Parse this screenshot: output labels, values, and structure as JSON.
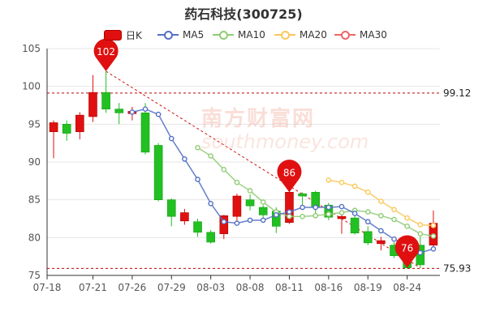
{
  "chart_data": {
    "type": "candlestick",
    "title": "药石科技(300725)",
    "legend": [
      {
        "name": "日K",
        "color": "#e01010",
        "kind": "candle"
      },
      {
        "name": "MA5",
        "color": "#5470c6",
        "kind": "line"
      },
      {
        "name": "MA10",
        "color": "#91cc75",
        "kind": "line"
      },
      {
        "name": "MA20",
        "color": "#fac858",
        "kind": "line"
      },
      {
        "name": "MA30",
        "color": "#ee6666",
        "kind": "line"
      }
    ],
    "legend_position": "top",
    "x_tick_labels": [
      "07-18",
      "07-21",
      "07-26",
      "07-29",
      "08-03",
      "08-08",
      "08-11",
      "08-16",
      "08-19",
      "08-24"
    ],
    "y_ticks": [
      75,
      80,
      85,
      90,
      95,
      100,
      105
    ],
    "ylim": [
      75,
      105
    ],
    "grid": true,
    "up_color": "#e01010",
    "down_color": "#22c022",
    "dates": [
      "07-18",
      "07-19",
      "07-20",
      "07-21",
      "07-22",
      "07-25",
      "07-26",
      "07-27",
      "07-28",
      "07-29",
      "08-01",
      "08-02",
      "08-03",
      "08-04",
      "08-05",
      "08-08",
      "08-09",
      "08-10",
      "08-11",
      "08-12",
      "08-15",
      "08-16",
      "08-17",
      "08-18",
      "08-19",
      "08-22",
      "08-23",
      "08-24",
      "08-25",
      "08-26"
    ],
    "candles": [
      {
        "open": 94.0,
        "close": 95.2,
        "high": 95.5,
        "low": 90.5
      },
      {
        "open": 95.0,
        "close": 93.8,
        "high": 95.5,
        "low": 92.8
      },
      {
        "open": 94.0,
        "close": 96.2,
        "high": 96.6,
        "low": 93.0
      },
      {
        "open": 96.0,
        "close": 99.2,
        "high": 101.5,
        "low": 95.3
      },
      {
        "open": 99.2,
        "close": 97.0,
        "high": 102.0,
        "low": 96.5
      },
      {
        "open": 97.0,
        "close": 96.5,
        "high": 97.8,
        "low": 95.0
      },
      {
        "open": 96.4,
        "close": 96.7,
        "high": 97.3,
        "low": 95.5
      },
      {
        "open": 96.5,
        "close": 91.3,
        "high": 97.8,
        "low": 91.0
      },
      {
        "open": 92.2,
        "close": 85.0,
        "high": 92.5,
        "low": 84.8
      },
      {
        "open": 85.0,
        "close": 82.8,
        "high": 85.2,
        "low": 81.5
      },
      {
        "open": 82.2,
        "close": 83.3,
        "high": 83.8,
        "low": 81.7
      },
      {
        "open": 82.1,
        "close": 80.7,
        "high": 82.5,
        "low": 80.1
      },
      {
        "open": 80.7,
        "close": 79.4,
        "high": 81.0,
        "low": 79.2
      },
      {
        "open": 80.5,
        "close": 82.9,
        "high": 83.0,
        "low": 79.8
      },
      {
        "open": 82.8,
        "close": 85.5,
        "high": 85.8,
        "low": 82.0
      },
      {
        "open": 85.0,
        "close": 84.2,
        "high": 85.7,
        "low": 83.6
      },
      {
        "open": 84.0,
        "close": 83.0,
        "high": 84.3,
        "low": 82.2
      },
      {
        "open": 83.5,
        "close": 81.5,
        "high": 84.0,
        "low": 80.6
      },
      {
        "open": 82.0,
        "close": 86.0,
        "high": 86.3,
        "low": 81.8
      },
      {
        "open": 85.8,
        "close": 85.5,
        "high": 86.0,
        "low": 83.8
      },
      {
        "open": 86.0,
        "close": 84.0,
        "high": 86.2,
        "low": 82.8
      },
      {
        "open": 84.3,
        "close": 82.7,
        "high": 84.6,
        "low": 82.3
      },
      {
        "open": 82.5,
        "close": 82.8,
        "high": 83.6,
        "low": 80.5
      },
      {
        "open": 82.6,
        "close": 80.6,
        "high": 82.9,
        "low": 80.4
      },
      {
        "open": 80.8,
        "close": 79.3,
        "high": 81.5,
        "low": 79.0
      },
      {
        "open": 79.2,
        "close": 79.6,
        "high": 80.1,
        "low": 78.3
      },
      {
        "open": 79.0,
        "close": 77.6,
        "high": 79.4,
        "low": 77.3
      },
      {
        "open": 77.7,
        "close": 76.0,
        "high": 78.3,
        "low": 75.9
      },
      {
        "open": 79.0,
        "close": 76.4,
        "high": 80.1,
        "low": 76.0
      },
      {
        "open": 79.0,
        "close": 81.9,
        "high": 83.6,
        "low": 78.8
      }
    ],
    "ma5": [
      null,
      null,
      null,
      null,
      null,
      null,
      96.6,
      97.0,
      96.3,
      93.1,
      90.4,
      87.7,
      84.5,
      82.1,
      81.9,
      82.3,
      82.3,
      83.0,
      83.4,
      84.0,
      84.0,
      84.0,
      84.1,
      83.2,
      82.1,
      80.9,
      79.8,
      79.0,
      78.0,
      78.5
    ],
    "ma10": [
      null,
      null,
      null,
      null,
      null,
      null,
      null,
      null,
      null,
      null,
      null,
      91.9,
      90.8,
      89.0,
      87.3,
      86.2,
      84.7,
      83.4,
      82.8,
      82.8,
      82.9,
      83.1,
      83.3,
      83.6,
      83.4,
      82.9,
      82.4,
      81.5,
      80.5,
      80.2
    ],
    "ma20": [
      null,
      null,
      null,
      null,
      null,
      null,
      null,
      null,
      null,
      null,
      null,
      null,
      null,
      null,
      null,
      null,
      null,
      null,
      null,
      null,
      null,
      87.6,
      87.3,
      86.8,
      86.0,
      84.8,
      83.7,
      82.6,
      81.7,
      81.6
    ],
    "ma30": [],
    "markers": [
      {
        "label": "102",
        "index": 4,
        "value": 102.0
      },
      {
        "label": "86",
        "index": 18,
        "value": 86.0
      },
      {
        "label": "76",
        "index": 27,
        "value": 76.0
      }
    ],
    "hlines": [
      {
        "label": "99.12",
        "value": 99.12
      },
      {
        "label": "75.93",
        "value": 75.93
      }
    ],
    "trend_line": {
      "start_index": 4,
      "start_value": 102.0,
      "end_index": 28,
      "end_value": 76.0
    }
  },
  "watermark": {
    "cn": "南方财富网",
    "en": "southmoney.com"
  }
}
